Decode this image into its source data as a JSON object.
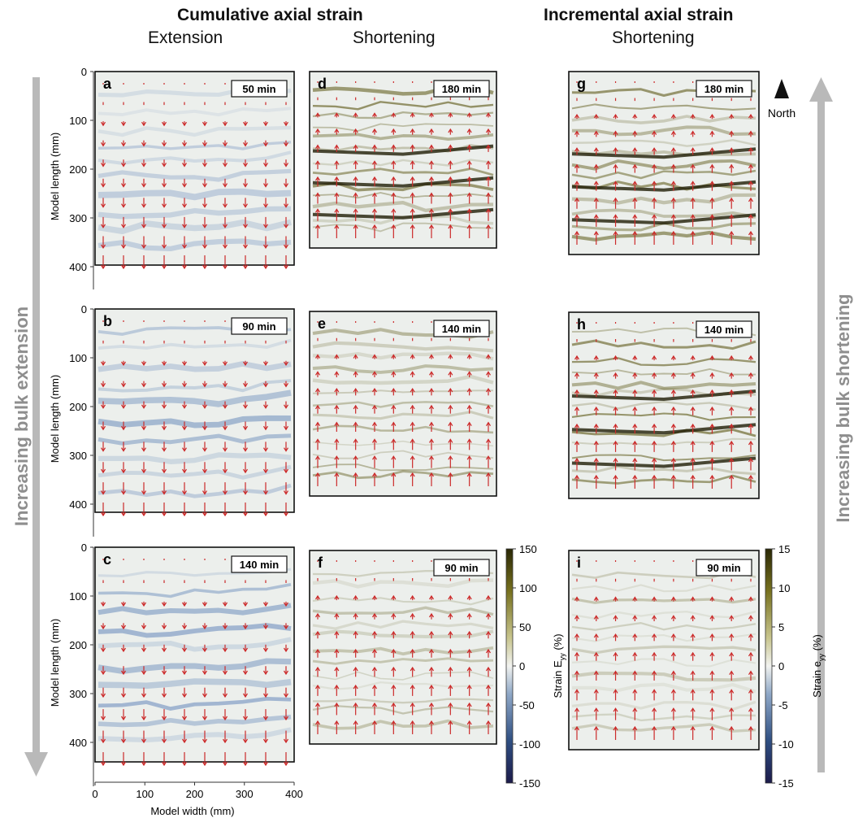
{
  "headers": {
    "cumulative": "Cumulative axial strain",
    "incremental": "Incremental axial strain",
    "extension": "Extension",
    "shortening": "Shortening",
    "shortening_incr": "Shortening"
  },
  "side_labels": {
    "left": "Increasing bulk extension",
    "right": "Increasing bulk shortening",
    "north": "North"
  },
  "axes": {
    "ylabel": "Model length (mm)",
    "xlabel": "Model width (mm)",
    "xticks": [
      "0",
      "100",
      "200",
      "300",
      "400"
    ]
  },
  "colors": {
    "background": "#ecefec",
    "extension": "#4a74b0",
    "shortening": "#5b5714",
    "arrow": "#cc2a2a"
  },
  "chart_data": [
    {
      "type": "heatmap",
      "panel": "a",
      "time": "50 min",
      "yticks": [
        "0",
        "100",
        "200",
        "300",
        "400"
      ],
      "ylim": [
        0,
        400
      ],
      "xlim": [
        0,
        400
      ],
      "mode": "extension"
    },
    {
      "type": "heatmap",
      "panel": "b",
      "time": "90 min",
      "yticks": [
        "0",
        "100",
        "200",
        "300",
        "400"
      ],
      "ylim": [
        0,
        410
      ],
      "xlim": [
        0,
        400
      ],
      "mode": "extension"
    },
    {
      "type": "heatmap",
      "panel": "c",
      "time": "140 min",
      "yticks": [
        "0",
        "100",
        "200",
        "300",
        "400"
      ],
      "ylim": [
        0,
        430
      ],
      "xlim": [
        0,
        400
      ],
      "mode": "extension"
    },
    {
      "type": "heatmap",
      "panel": "d",
      "time": "180 min",
      "mode": "shortening"
    },
    {
      "type": "heatmap",
      "panel": "e",
      "time": "140 min",
      "mode": "shortening"
    },
    {
      "type": "heatmap",
      "panel": "f",
      "time": "90 min",
      "mode": "shortening"
    },
    {
      "type": "heatmap",
      "panel": "g",
      "time": "180 min",
      "mode": "shortening"
    },
    {
      "type": "heatmap",
      "panel": "h",
      "time": "140 min",
      "mode": "shortening"
    },
    {
      "type": "heatmap",
      "panel": "i",
      "time": "90 min",
      "mode": "shortening"
    }
  ],
  "colorbars": [
    {
      "label": "Strain Eyy (%)",
      "label_main": "Strain E",
      "label_sub": "yy",
      "label_unit": " (%)",
      "ticks": [
        "150",
        "100",
        "50",
        "0",
        "-50",
        "-100",
        "-150"
      ],
      "range": [
        -150,
        150
      ]
    },
    {
      "label": "Strain eyy (%)",
      "label_main": "Strain e",
      "label_sub": "yy",
      "label_unit": " (%)",
      "ticks": [
        "15",
        "10",
        "5",
        "0",
        "-5",
        "-10",
        "-15"
      ],
      "range": [
        -15,
        15
      ]
    }
  ]
}
